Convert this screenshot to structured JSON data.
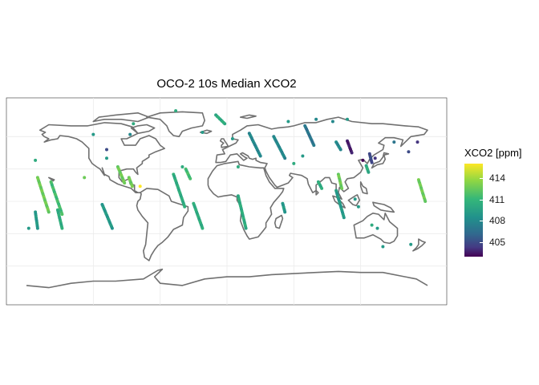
{
  "title": "OCO-2 10s Median XCO2",
  "legend": {
    "title": "XCO2 [ppm]",
    "ticks": [
      "414",
      "411",
      "408",
      "405"
    ],
    "tick_values": [
      414,
      411,
      408,
      405
    ],
    "range": [
      403,
      416
    ],
    "palette": [
      "#fde725",
      "#90d743",
      "#35b779",
      "#21918c",
      "#31688e",
      "#443983",
      "#440154"
    ]
  },
  "map": {
    "projection": "equirectangular",
    "lon_range": [
      -180,
      180
    ],
    "lat_range": [
      -90,
      90
    ],
    "coastline_color": "#707070",
    "grid_color": "#ebebeb",
    "background": "#ffffff",
    "grid_lon": [
      -120,
      -60,
      0,
      60,
      120
    ],
    "grid_lat": [
      -60,
      -30,
      0,
      30,
      60
    ]
  },
  "chart_data": {
    "type": "scatter",
    "title": "OCO-2 10s Median XCO2",
    "color_variable": "XCO2 [ppm]",
    "tracks": [
      {
        "lon0": -170,
        "lat0": 22,
        "lon1": -160,
        "lat1": -10,
        "value": 413
      },
      {
        "lon0": -158,
        "lat0": 18,
        "lon1": -148,
        "lat1": -12,
        "value": 412
      },
      {
        "lon0": -152,
        "lat0": -8,
        "lon1": -148,
        "lat1": -25,
        "value": 411
      },
      {
        "lon0": -172,
        "lat0": -10,
        "lon1": -170,
        "lat1": -25,
        "value": 410
      },
      {
        "lon0": -112,
        "lat0": -3,
        "lon1": -103,
        "lat1": -25,
        "value": 410
      },
      {
        "lon0": -98,
        "lat0": 32,
        "lon1": -92,
        "lat1": 17,
        "value": 413
      },
      {
        "lon0": -88,
        "lat0": 22,
        "lon1": -85,
        "lat1": 14,
        "value": 413
      },
      {
        "lon0": -30,
        "lat0": -2,
        "lon1": -22,
        "lat1": -25,
        "value": 411
      },
      {
        "lon0": -48,
        "lat0": 25,
        "lon1": -38,
        "lat1": -5,
        "value": 411
      },
      {
        "lon0": -37,
        "lat0": 30,
        "lon1": -33,
        "lat1": 21,
        "value": 412
      },
      {
        "lon0": 10,
        "lat0": 5,
        "lon1": 17,
        "lat1": -25,
        "value": 411
      },
      {
        "lon0": 20,
        "lat0": 63,
        "lon1": 30,
        "lat1": 42,
        "value": 409
      },
      {
        "lon0": 42,
        "lat0": 60,
        "lon1": 52,
        "lat1": 40,
        "value": 409
      },
      {
        "lon0": 70,
        "lat0": 70,
        "lon1": 78,
        "lat1": 52,
        "value": 408
      },
      {
        "lon0": 98,
        "lat0": 55,
        "lon1": 102,
        "lat1": 48,
        "value": 409
      },
      {
        "lon0": 108,
        "lat0": 56,
        "lon1": 112,
        "lat1": 45,
        "value": 404
      },
      {
        "lon0": 128,
        "lat0": 44,
        "lon1": 130,
        "lat1": 36,
        "value": 406
      },
      {
        "lon0": 125,
        "lat0": 33,
        "lon1": 127,
        "lat1": 27,
        "value": 411
      },
      {
        "lon0": 100,
        "lat0": 25,
        "lon1": 103,
        "lat1": 12,
        "value": 413
      },
      {
        "lon0": 82,
        "lat0": 18,
        "lon1": 85,
        "lat1": 12,
        "value": 411
      },
      {
        "lon0": 98,
        "lat0": 10,
        "lon1": 105,
        "lat1": -15,
        "value": 410
      },
      {
        "lon0": 172,
        "lat0": 20,
        "lon1": 178,
        "lat1": 0,
        "value": 413
      },
      {
        "lon0": 50,
        "lat0": -2,
        "lon1": 52,
        "lat1": -10,
        "value": 410
      },
      {
        "lon0": -10,
        "lat0": 80,
        "lon1": -2,
        "lat1": 72,
        "value": 411
      }
    ],
    "points": [
      {
        "lon": -108,
        "lat": 48,
        "value": 406
      },
      {
        "lon": -108,
        "lat": 40,
        "value": 410
      },
      {
        "lon": -128,
        "lat": 22,
        "value": 413
      },
      {
        "lon": -84,
        "lat": 72,
        "value": 411
      },
      {
        "lon": -78,
        "lat": 14,
        "value": 416
      },
      {
        "lon": -87,
        "lat": 62,
        "value": 409
      },
      {
        "lon": -120,
        "lat": 62,
        "value": 410
      },
      {
        "lon": -46,
        "lat": 84,
        "value": 411
      },
      {
        "lon": -172,
        "lat": 38,
        "value": 411
      },
      {
        "lon": -178,
        "lat": -25,
        "value": 410
      },
      {
        "lon": 133,
        "lat": 40,
        "value": 405
      },
      {
        "lon": 163,
        "lat": 46,
        "value": 406
      },
      {
        "lon": 171,
        "lat": 55,
        "value": 405
      },
      {
        "lon": 122,
        "lat": 38,
        "value": 403
      },
      {
        "lon": 150,
        "lat": 55,
        "value": 408
      },
      {
        "lon": 55,
        "lat": 74,
        "value": 410
      },
      {
        "lon": 80,
        "lat": 76,
        "value": 409
      },
      {
        "lon": 95,
        "lat": 74,
        "value": 409
      },
      {
        "lon": 108,
        "lat": 76,
        "value": 410
      },
      {
        "lon": 60,
        "lat": 35,
        "value": 411
      },
      {
        "lon": 68,
        "lat": 42,
        "value": 410
      },
      {
        "lon": 130,
        "lat": -22,
        "value": 411
      },
      {
        "lon": 135,
        "lat": -25,
        "value": 410
      },
      {
        "lon": 118,
        "lat": -5,
        "value": 410
      },
      {
        "lon": 115,
        "lat": 2,
        "value": 410
      },
      {
        "lon": -40,
        "lat": 32,
        "value": 411
      },
      {
        "lon": 10,
        "lat": 32,
        "value": 411
      },
      {
        "lon": 5,
        "lat": 58,
        "value": 410
      },
      {
        "lon": -22,
        "lat": 64,
        "value": 410
      },
      {
        "lon": 165,
        "lat": -40,
        "value": 410
      },
      {
        "lon": 140,
        "lat": -42,
        "value": 410
      }
    ]
  }
}
